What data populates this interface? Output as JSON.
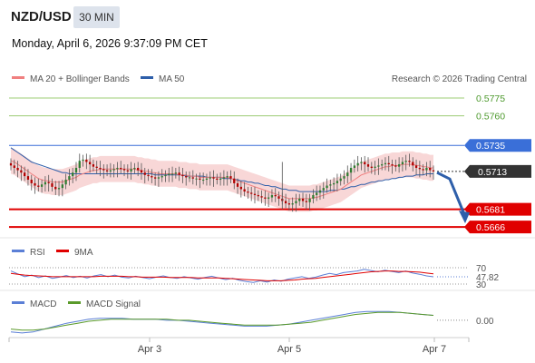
{
  "header": {
    "symbol": "NZD/USD",
    "timeframe": "30 MIN",
    "datetime": "Monday, April 6, 2026 9:37:09 PM CET"
  },
  "legend": {
    "ma20": "MA 20 + Bollinger Bands",
    "ma50": "MA 50",
    "attribution": "Research © 2026 Trading Central",
    "rsi": "RSI",
    "rsi_ma": "9MA",
    "macd": "MACD",
    "macd_signal": "MACD Signal"
  },
  "colors": {
    "ma20": "#f08080",
    "ma50": "#2e5faa",
    "band_fill": "#f5caca",
    "resistance_green": "#9ccc74",
    "blue_level": "#3a6fd8",
    "support_red": "#e00000",
    "current_price_bg": "#333333",
    "candle_up": "#2f7d32",
    "candle_down": "#b00000",
    "arrow": "#2e5faa",
    "macd_signal": "#5a9a2a",
    "tf_badge_bg": "#dde3ec"
  },
  "chart_data": [
    {
      "type": "candlestick",
      "title": "NZD/USD",
      "x_labels": [
        "Apr 3",
        "Apr 5",
        "Apr 7"
      ],
      "ylim": [
        0.566,
        0.5785
      ],
      "levels": [
        {
          "value": 0.5775,
          "label": "0.5775",
          "kind": "resistance",
          "color": "#9ccc74"
        },
        {
          "value": 0.576,
          "label": "0.5760",
          "kind": "resistance",
          "color": "#9ccc74"
        },
        {
          "value": 0.5735,
          "label": "0.5735",
          "kind": "pivot",
          "color": "#3a6fd8"
        },
        {
          "value": 0.5681,
          "label": "0.5681",
          "kind": "support",
          "color": "#e00000"
        },
        {
          "value": 0.5666,
          "label": "0.5666",
          "kind": "support",
          "color": "#e00000"
        }
      ],
      "current_price": {
        "value": 0.5713,
        "label": "0.5713"
      },
      "forecast": {
        "from": 0.5712,
        "to": 0.5666,
        "direction": "down"
      },
      "close_series": [
        0.5718,
        0.5716,
        0.5714,
        0.5712,
        0.5709,
        0.5706,
        0.5703,
        0.5701,
        0.57,
        0.5702,
        0.5704,
        0.5703,
        0.57,
        0.5698,
        0.5699,
        0.5702,
        0.5706,
        0.5709,
        0.5712,
        0.5716,
        0.5722,
        0.5723,
        0.5721,
        0.5719,
        0.5717,
        0.5716,
        0.5715,
        0.5714,
        0.5713,
        0.5714,
        0.5715,
        0.5716,
        0.5715,
        0.5714,
        0.5713,
        0.5715,
        0.5716,
        0.5714,
        0.5712,
        0.571,
        0.5709,
        0.5708,
        0.5707,
        0.5708,
        0.5709,
        0.571,
        0.5711,
        0.5711,
        0.5712,
        0.571,
        0.5709,
        0.5708,
        0.5708,
        0.5707,
        0.5707,
        0.5706,
        0.5706,
        0.5707,
        0.5708,
        0.5707,
        0.5706,
        0.5707,
        0.5708,
        0.5709,
        0.5707,
        0.5703,
        0.57,
        0.5698,
        0.5696,
        0.5695,
        0.5694,
        0.5693,
        0.5692,
        0.5691,
        0.569,
        0.5691,
        0.5693,
        0.5692,
        0.569,
        0.5688,
        0.5686,
        0.5685,
        0.5686,
        0.5688,
        0.569,
        0.5688,
        0.5687,
        0.569,
        0.5693,
        0.5695,
        0.5697,
        0.5699,
        0.5701,
        0.5702,
        0.5703,
        0.5705,
        0.5707,
        0.5709,
        0.5712,
        0.5716,
        0.5718,
        0.572,
        0.5721,
        0.5719,
        0.5717,
        0.5716,
        0.5717,
        0.5718,
        0.5719,
        0.572,
        0.5719,
        0.5718,
        0.5717,
        0.5719,
        0.5721,
        0.5722,
        0.5721,
        0.5718,
        0.5716,
        0.5715,
        0.5714,
        0.5716,
        0.5714,
        0.5713
      ],
      "ma20_series": [
        0.5722,
        0.5721,
        0.5719,
        0.5717,
        0.5715,
        0.5713,
        0.5711,
        0.5709,
        0.5707,
        0.5706,
        0.5705,
        0.5705,
        0.5704,
        0.5704,
        0.5704,
        0.5704,
        0.5705,
        0.5706,
        0.5707,
        0.5708,
        0.571,
        0.5711,
        0.5712,
        0.5713,
        0.5714,
        0.5714,
        0.5715,
        0.5715,
        0.5715,
        0.5715,
        0.5715,
        0.5715,
        0.5715,
        0.5715,
        0.5715,
        0.5715,
        0.5715,
        0.5714,
        0.5714,
        0.5713,
        0.5713,
        0.5712,
        0.5712,
        0.5711,
        0.5711,
        0.5711,
        0.5711,
        0.5711,
        0.5711,
        0.571,
        0.571,
        0.571,
        0.5709,
        0.5709,
        0.5709,
        0.5708,
        0.5708,
        0.5708,
        0.5708,
        0.5708,
        0.5708,
        0.5708,
        0.5708,
        0.5708,
        0.5707,
        0.5706,
        0.5705,
        0.5704,
        0.5703,
        0.5702,
        0.5701,
        0.57,
        0.5699,
        0.5698,
        0.5697,
        0.5696,
        0.5695,
        0.5694,
        0.5693,
        0.5692,
        0.5691,
        0.569,
        0.569,
        0.569,
        0.569,
        0.569,
        0.569,
        0.569,
        0.5691,
        0.5691,
        0.5692,
        0.5693,
        0.5694,
        0.5695,
        0.5696,
        0.5697,
        0.5698,
        0.57,
        0.5702,
        0.5704,
        0.5706,
        0.5708,
        0.571,
        0.5711,
        0.5712,
        0.5713,
        0.5714,
        0.5715,
        0.5716,
        0.5717,
        0.5717,
        0.5718,
        0.5718,
        0.5718,
        0.5719,
        0.5719,
        0.5719,
        0.5719,
        0.5718,
        0.5718,
        0.5717,
        0.5717,
        0.5716,
        0.5716
      ],
      "ma50_series": [
        0.5733,
        0.5731,
        0.5729,
        0.5727,
        0.5725,
        0.5723,
        0.5721,
        0.572,
        0.5719,
        0.5718,
        0.5717,
        0.5716,
        0.5715,
        0.5714,
        0.5713,
        0.5712,
        0.5712,
        0.5711,
        0.5711,
        0.5711,
        0.5711,
        0.5711,
        0.5711,
        0.5711,
        0.5711,
        0.5711,
        0.5711,
        0.5711,
        0.5711,
        0.5711,
        0.5711,
        0.5711,
        0.5711,
        0.5711,
        0.5711,
        0.5711,
        0.5711,
        0.5711,
        0.5711,
        0.5711,
        0.5711,
        0.5711,
        0.571,
        0.571,
        0.571,
        0.571,
        0.571,
        0.571,
        0.571,
        0.571,
        0.571,
        0.5709,
        0.5709,
        0.5709,
        0.5709,
        0.5709,
        0.5709,
        0.5708,
        0.5708,
        0.5708,
        0.5708,
        0.5708,
        0.5707,
        0.5707,
        0.5707,
        0.5706,
        0.5706,
        0.5705,
        0.5705,
        0.5704,
        0.5704,
        0.5703,
        0.5703,
        0.5702,
        0.5701,
        0.5701,
        0.57,
        0.57,
        0.5699,
        0.5698,
        0.5698,
        0.5697,
        0.5697,
        0.5697,
        0.5696,
        0.5696,
        0.5696,
        0.5696,
        0.5696,
        0.5696,
        0.5696,
        0.5696,
        0.5696,
        0.5697,
        0.5697,
        0.5697,
        0.5698,
        0.5698,
        0.5699,
        0.57,
        0.57,
        0.5701,
        0.5702,
        0.5702,
        0.5703,
        0.5704,
        0.5704,
        0.5705,
        0.5705,
        0.5706,
        0.5706,
        0.5707,
        0.5707,
        0.5708,
        0.5708,
        0.5709,
        0.5709,
        0.5709,
        0.571,
        0.571,
        0.571,
        0.5711,
        0.5711,
        0.5711
      ],
      "band_width": 0.0011
    },
    {
      "type": "line",
      "title": "RSI",
      "ylim": [
        30,
        70
      ],
      "ticks": [
        "70",
        "30"
      ],
      "current_value": "47.82",
      "series": [
        {
          "name": "RSI",
          "color": "#5b7fd6",
          "values": [
            62,
            55,
            48,
            52,
            46,
            50,
            44,
            47,
            51,
            46,
            49,
            45,
            50,
            53,
            48,
            52,
            47,
            45,
            49,
            46,
            43,
            47,
            50,
            46,
            44,
            48,
            45,
            42,
            46,
            49,
            45,
            41,
            44,
            39,
            36,
            34,
            38,
            35,
            40,
            37,
            42,
            45,
            48,
            44,
            47,
            52,
            56,
            53,
            58,
            60,
            62,
            66,
            63,
            60,
            64,
            61,
            58,
            62,
            57,
            54,
            50,
            47.82
          ]
        },
        {
          "name": "9MA",
          "color": "#e00000",
          "values": [
            56,
            54,
            52,
            51,
            50,
            49,
            48,
            48,
            48,
            48,
            48,
            48,
            48,
            49,
            49,
            49,
            49,
            48,
            48,
            47,
            47,
            47,
            47,
            46,
            46,
            46,
            46,
            45,
            45,
            45,
            45,
            44,
            43,
            42,
            41,
            40,
            39,
            38,
            38,
            38,
            39,
            40,
            42,
            43,
            44,
            46,
            48,
            50,
            52,
            54,
            56,
            58,
            60,
            61,
            62,
            62,
            61,
            61,
            60,
            59,
            57,
            55
          ]
        }
      ]
    },
    {
      "type": "line",
      "title": "MACD",
      "ylim": [
        -0.0014,
        0.0012
      ],
      "current_value": "0.00",
      "series": [
        {
          "name": "MACD",
          "color": "#5b7fd6",
          "values": [
            -0.0012,
            -0.0013,
            -0.0012,
            -0.0009,
            -0.0006,
            -0.0003,
            -0.0001,
            0.0001,
            0.0002,
            0.0002,
            0.0002,
            0.0001,
            0.0001,
            0.0001,
            0.0,
            0.0,
            -0.0001,
            -0.0002,
            -0.0003,
            -0.0004,
            -0.0005,
            -0.0006,
            -0.0006,
            -0.0006,
            -0.0005,
            -0.0004,
            -0.0002,
            0.0,
            0.0002,
            0.0004,
            0.0006,
            0.0008,
            0.0009,
            0.0009,
            0.0009,
            0.0008,
            0.0007,
            0.0006,
            0.0005
          ]
        },
        {
          "name": "MACD Signal",
          "color": "#5a9a2a",
          "values": [
            -0.0009,
            -0.001,
            -0.001,
            -0.0009,
            -0.0007,
            -0.0005,
            -0.0003,
            -0.0001,
            0.0,
            0.0001,
            0.0001,
            0.0001,
            0.0001,
            0.0001,
            0.0001,
            0.0,
            0.0,
            -0.0001,
            -0.0002,
            -0.0003,
            -0.0004,
            -0.0005,
            -0.0005,
            -0.0005,
            -0.0005,
            -0.0004,
            -0.0003,
            -0.0002,
            0.0,
            0.0002,
            0.0004,
            0.0006,
            0.0007,
            0.0008,
            0.0008,
            0.0008,
            0.0007,
            0.0006,
            0.0005
          ]
        }
      ]
    }
  ]
}
